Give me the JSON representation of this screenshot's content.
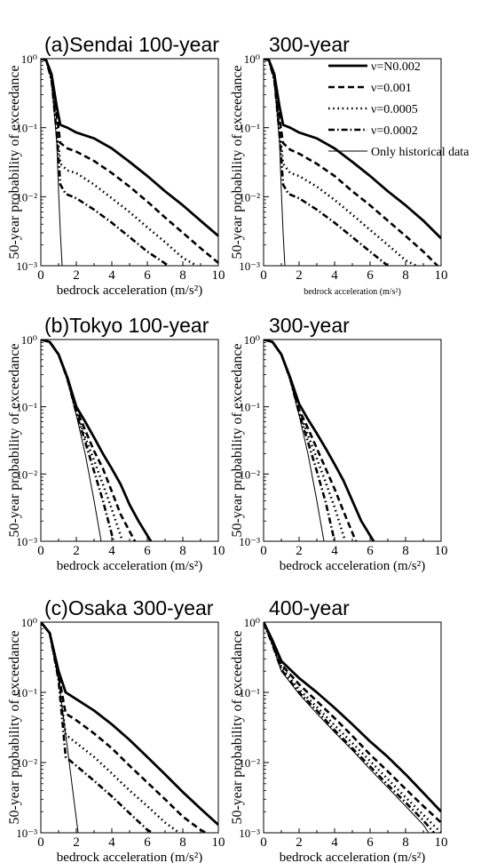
{
  "legend": {
    "placement": "top-right of first row",
    "entries": [
      {
        "label": "ν=N0.002",
        "style": "solid-thick"
      },
      {
        "label": "ν=0.001",
        "style": "dashed"
      },
      {
        "label": "ν=0.0005",
        "style": "dotted"
      },
      {
        "label": "ν=0.0002",
        "style": "dash-dot"
      },
      {
        "label": "Only historical data",
        "style": "solid-thin"
      }
    ]
  },
  "chart_data": [
    {
      "type": "line",
      "title": "(a)Sendai 100-year",
      "xlabel": "bedrock acceleration (m/s²)",
      "ylabel": "50-year probability of exceedance",
      "xlim": [
        0,
        10
      ],
      "ylim": [
        0.001,
        1
      ],
      "yscale": "log",
      "x_ticks": [
        "0",
        "2",
        "4",
        "6",
        "8",
        "10"
      ],
      "y_ticks": [
        "10⁻³",
        "10⁻²",
        "10⁻¹",
        "10⁰"
      ],
      "series": [
        {
          "name": "ν=N0.002",
          "x": [
            0,
            0.3,
            0.6,
            0.9,
            1.1,
            1.5,
            2,
            3,
            4,
            5,
            6,
            7,
            8,
            9,
            10
          ],
          "y": [
            1,
            0.95,
            0.6,
            0.2,
            0.11,
            0.1,
            0.085,
            0.07,
            0.05,
            0.032,
            0.02,
            0.012,
            0.0075,
            0.0045,
            0.0027
          ]
        },
        {
          "name": "ν=0.001",
          "x": [
            0,
            0.3,
            0.6,
            0.9,
            1.1,
            1.5,
            2,
            3,
            4,
            5,
            6,
            7,
            8,
            9,
            10
          ],
          "y": [
            1,
            0.95,
            0.55,
            0.15,
            0.06,
            0.05,
            0.045,
            0.033,
            0.022,
            0.014,
            0.0085,
            0.005,
            0.003,
            0.0018,
            0.0011
          ]
        },
        {
          "name": "ν=0.0005",
          "x": [
            0,
            0.3,
            0.6,
            0.9,
            1.1,
            1.5,
            2,
            3,
            4,
            5,
            6,
            7,
            8,
            8.8
          ],
          "y": [
            1,
            0.95,
            0.5,
            0.1,
            0.03,
            0.024,
            0.022,
            0.015,
            0.0095,
            0.006,
            0.0036,
            0.0022,
            0.0013,
            0.001
          ]
        },
        {
          "name": "ν=0.0002",
          "x": [
            0,
            0.3,
            0.6,
            0.9,
            1.1,
            1.4,
            2,
            3,
            4,
            5,
            6,
            7.2
          ],
          "y": [
            1,
            0.95,
            0.5,
            0.08,
            0.015,
            0.011,
            0.0095,
            0.0065,
            0.0042,
            0.0026,
            0.0016,
            0.001
          ]
        },
        {
          "name": "Only historical data",
          "x": [
            0,
            0.3,
            0.6,
            0.9,
            1.0,
            1.1,
            1.2
          ],
          "y": [
            1,
            0.95,
            0.5,
            0.06,
            0.012,
            0.003,
            0.001
          ]
        }
      ]
    },
    {
      "type": "line",
      "title": "300-year",
      "xlabel": "bedrock acceleration (m/s²)",
      "ylabel": "50-year probability of exceedance",
      "xlim": [
        0,
        10
      ],
      "ylim": [
        0.001,
        1
      ],
      "yscale": "log",
      "x_ticks": [
        "0",
        "2",
        "4",
        "6",
        "8",
        "10"
      ],
      "y_ticks": [
        "10⁻³",
        "10⁻²",
        "10⁻¹",
        "10⁰"
      ],
      "series": [
        {
          "name": "ν=N0.002",
          "x": [
            0,
            0.3,
            0.6,
            0.9,
            1.1,
            1.5,
            2,
            3,
            4,
            5,
            6,
            7,
            8,
            9,
            10
          ],
          "y": [
            1,
            0.95,
            0.6,
            0.2,
            0.11,
            0.1,
            0.085,
            0.07,
            0.05,
            0.032,
            0.02,
            0.012,
            0.0075,
            0.0045,
            0.0025
          ]
        },
        {
          "name": "ν=0.001",
          "x": [
            0,
            0.3,
            0.6,
            0.9,
            1.1,
            1.5,
            2,
            3,
            4,
            5,
            6,
            7,
            8,
            9,
            9.8
          ],
          "y": [
            1,
            0.95,
            0.55,
            0.13,
            0.06,
            0.048,
            0.042,
            0.03,
            0.02,
            0.012,
            0.0075,
            0.0045,
            0.0027,
            0.0016,
            0.001
          ]
        },
        {
          "name": "ν=0.0005",
          "x": [
            0,
            0.3,
            0.6,
            0.9,
            1.1,
            1.5,
            2,
            3,
            4,
            5,
            6,
            7,
            8,
            8.6
          ],
          "y": [
            1,
            0.95,
            0.5,
            0.1,
            0.03,
            0.022,
            0.02,
            0.014,
            0.009,
            0.0055,
            0.0033,
            0.002,
            0.0012,
            0.001
          ]
        },
        {
          "name": "ν=0.0002",
          "x": [
            0,
            0.3,
            0.6,
            0.9,
            1.1,
            1.4,
            2,
            3,
            4,
            5,
            6,
            7
          ],
          "y": [
            1,
            0.95,
            0.5,
            0.08,
            0.015,
            0.011,
            0.0095,
            0.0065,
            0.0042,
            0.0026,
            0.0016,
            0.001
          ]
        },
        {
          "name": "Only historical data",
          "x": [
            0,
            0.3,
            0.6,
            0.9,
            1.0,
            1.1,
            1.2
          ],
          "y": [
            1,
            0.95,
            0.5,
            0.06,
            0.012,
            0.003,
            0.001
          ]
        }
      ]
    },
    {
      "type": "line",
      "title": "(b)Tokyo 100-year",
      "xlabel": "bedrock acceleration (m/s²)",
      "ylabel": "50-year probability of exceedance",
      "xlim": [
        0,
        10
      ],
      "ylim": [
        0.001,
        1
      ],
      "yscale": "log",
      "x_ticks": [
        "0",
        "2",
        "4",
        "6",
        "8",
        "10"
      ],
      "y_ticks": [
        "10⁻³",
        "10⁻²",
        "10⁻¹",
        "10⁰"
      ],
      "series": [
        {
          "name": "ν=N0.002",
          "x": [
            0,
            0.5,
            1,
            1.5,
            2,
            2.5,
            3,
            3.5,
            4,
            4.5,
            5,
            5.5,
            6.2
          ],
          "y": [
            1,
            0.92,
            0.6,
            0.27,
            0.1,
            0.06,
            0.035,
            0.02,
            0.012,
            0.007,
            0.0035,
            0.002,
            0.001
          ]
        },
        {
          "name": "ν=0.001",
          "x": [
            0,
            0.5,
            1,
            1.5,
            2,
            2.5,
            3,
            3.5,
            4,
            4.5,
            5.3
          ],
          "y": [
            1,
            0.92,
            0.6,
            0.26,
            0.09,
            0.045,
            0.022,
            0.012,
            0.0055,
            0.0025,
            0.001
          ]
        },
        {
          "name": "ν=0.0005",
          "x": [
            0,
            0.5,
            1,
            1.5,
            2,
            2.5,
            3,
            3.5,
            4,
            4.6
          ],
          "y": [
            1,
            0.92,
            0.6,
            0.26,
            0.085,
            0.035,
            0.016,
            0.007,
            0.003,
            0.001
          ]
        },
        {
          "name": "ν=0.0002",
          "x": [
            0,
            0.5,
            1,
            1.5,
            2,
            2.5,
            3,
            3.5,
            4.1
          ],
          "y": [
            1,
            0.92,
            0.6,
            0.26,
            0.08,
            0.03,
            0.011,
            0.004,
            0.001
          ]
        },
        {
          "name": "Only historical data",
          "x": [
            0,
            0.5,
            1,
            1.5,
            2,
            2.5,
            3,
            3.4
          ],
          "y": [
            1,
            0.92,
            0.6,
            0.25,
            0.075,
            0.02,
            0.004,
            0.001
          ]
        }
      ]
    },
    {
      "type": "line",
      "title": "300-year",
      "xlabel": "bedrock acceleration (m/s²)",
      "ylabel": "50-year probability of exceedance",
      "xlim": [
        0,
        10
      ],
      "ylim": [
        0.001,
        1
      ],
      "yscale": "log",
      "x_ticks": [
        "0",
        "2",
        "4",
        "6",
        "8",
        "10"
      ],
      "y_ticks": [
        "10⁻³",
        "10⁻²",
        "10⁻¹",
        "10⁰"
      ],
      "series": [
        {
          "name": "ν=N0.002",
          "x": [
            0,
            0.5,
            1,
            1.5,
            2,
            2.5,
            3,
            3.5,
            4,
            4.5,
            5,
            5.5,
            6.2
          ],
          "y": [
            1,
            0.92,
            0.6,
            0.27,
            0.11,
            0.065,
            0.04,
            0.024,
            0.014,
            0.008,
            0.004,
            0.002,
            0.001
          ]
        },
        {
          "name": "ν=0.001",
          "x": [
            0,
            0.5,
            1,
            1.5,
            2,
            2.5,
            3,
            3.5,
            4,
            4.5,
            5.2
          ],
          "y": [
            1,
            0.92,
            0.6,
            0.26,
            0.09,
            0.048,
            0.024,
            0.012,
            0.006,
            0.0028,
            0.001
          ]
        },
        {
          "name": "ν=0.0005",
          "x": [
            0,
            0.5,
            1,
            1.5,
            2,
            2.5,
            3,
            3.5,
            4,
            4.6
          ],
          "y": [
            1,
            0.92,
            0.6,
            0.26,
            0.085,
            0.038,
            0.017,
            0.0075,
            0.0032,
            0.001
          ]
        },
        {
          "name": "ν=0.0002",
          "x": [
            0,
            0.5,
            1,
            1.5,
            2,
            2.5,
            3,
            3.5,
            4
          ],
          "y": [
            1,
            0.92,
            0.6,
            0.26,
            0.08,
            0.03,
            0.011,
            0.0038,
            0.001
          ]
        },
        {
          "name": "Only historical data",
          "x": [
            0,
            0.5,
            1,
            1.5,
            2,
            2.5,
            3,
            3.4
          ],
          "y": [
            1,
            0.92,
            0.6,
            0.25,
            0.075,
            0.02,
            0.004,
            0.001
          ]
        }
      ]
    },
    {
      "type": "line",
      "title": "(c)Osaka 300-year",
      "xlabel": "bedrock acceleration (m/s²)",
      "ylabel": "50-year probability of exceedance",
      "xlim": [
        0,
        10
      ],
      "ylim": [
        0.001,
        1
      ],
      "yscale": "log",
      "x_ticks": [
        "0",
        "2",
        "4",
        "6",
        "8",
        "10"
      ],
      "y_ticks": [
        "10⁻³",
        "10⁻²",
        "10⁻¹",
        "10⁰"
      ],
      "series": [
        {
          "name": "ν=N0.002",
          "x": [
            0,
            0.5,
            1,
            1.4,
            2,
            3,
            4,
            5,
            6,
            7,
            8,
            9,
            10
          ],
          "y": [
            1,
            0.7,
            0.2,
            0.1,
            0.08,
            0.055,
            0.035,
            0.021,
            0.012,
            0.0068,
            0.0038,
            0.0022,
            0.0013
          ]
        },
        {
          "name": "ν=0.001",
          "x": [
            0,
            0.5,
            1,
            1.4,
            2,
            3,
            4,
            5,
            6,
            7,
            8,
            9,
            9.3
          ],
          "y": [
            1,
            0.7,
            0.18,
            0.05,
            0.04,
            0.026,
            0.016,
            0.009,
            0.0052,
            0.003,
            0.0017,
            0.0011,
            0.001
          ]
        },
        {
          "name": "ν=0.0005",
          "x": [
            0,
            0.5,
            1,
            1.4,
            2,
            3,
            4,
            5,
            6,
            7,
            7.8
          ],
          "y": [
            1,
            0.7,
            0.16,
            0.025,
            0.019,
            0.012,
            0.007,
            0.004,
            0.0024,
            0.0014,
            0.001
          ]
        },
        {
          "name": "ν=0.0002",
          "x": [
            0,
            0.5,
            1,
            1.4,
            2,
            3,
            4,
            5,
            6,
            6.3
          ],
          "y": [
            1,
            0.7,
            0.15,
            0.012,
            0.009,
            0.0055,
            0.0033,
            0.0019,
            0.0011,
            0.001
          ]
        },
        {
          "name": "Only historical data",
          "x": [
            0,
            0.5,
            1,
            1.3,
            1.6,
            1.9,
            2.1
          ],
          "y": [
            1,
            0.7,
            0.15,
            0.04,
            0.01,
            0.0025,
            0.001
          ]
        }
      ]
    },
    {
      "type": "line",
      "title": "400-year",
      "xlabel": "bedrock acceleration (m/s²)",
      "ylabel": "50-year probability of exceedance",
      "xlim": [
        0,
        10
      ],
      "ylim": [
        0.001,
        1
      ],
      "yscale": "log",
      "x_ticks": [
        "0",
        "2",
        "4",
        "6",
        "8",
        "10"
      ],
      "y_ticks": [
        "10⁻³",
        "10⁻²",
        "10⁻¹",
        "10⁰"
      ],
      "series": [
        {
          "name": "ν=N0.002",
          "x": [
            0,
            0.5,
            1,
            2,
            3,
            4,
            5,
            6,
            7,
            8,
            9,
            10
          ],
          "y": [
            1,
            0.55,
            0.28,
            0.16,
            0.1,
            0.06,
            0.035,
            0.02,
            0.012,
            0.0068,
            0.0037,
            0.002
          ]
        },
        {
          "name": "ν=0.001",
          "x": [
            0,
            0.5,
            1,
            2,
            3,
            4,
            5,
            6,
            7,
            8,
            9,
            10
          ],
          "y": [
            1,
            0.52,
            0.25,
            0.13,
            0.075,
            0.043,
            0.024,
            0.013,
            0.0075,
            0.0042,
            0.0024,
            0.0014
          ]
        },
        {
          "name": "ν=0.0005",
          "x": [
            0,
            0.5,
            1,
            2,
            3,
            4,
            5,
            6,
            7,
            8,
            9,
            10
          ],
          "y": [
            1,
            0.5,
            0.23,
            0.11,
            0.062,
            0.034,
            0.019,
            0.0105,
            0.0058,
            0.0032,
            0.0018,
            0.001
          ]
        },
        {
          "name": "ν=0.0002",
          "x": [
            0,
            0.5,
            1,
            2,
            3,
            4,
            5,
            6,
            7,
            8,
            9,
            9.6
          ],
          "y": [
            1,
            0.48,
            0.21,
            0.1,
            0.055,
            0.029,
            0.016,
            0.0088,
            0.0048,
            0.0027,
            0.0015,
            0.001
          ]
        },
        {
          "name": "Only historical data",
          "x": [
            0,
            0.5,
            1,
            2,
            3,
            4,
            5,
            6,
            7,
            8,
            9,
            9.3
          ],
          "y": [
            1,
            0.47,
            0.2,
            0.095,
            0.05,
            0.027,
            0.015,
            0.008,
            0.0044,
            0.0024,
            0.0013,
            0.001
          ]
        }
      ]
    }
  ]
}
